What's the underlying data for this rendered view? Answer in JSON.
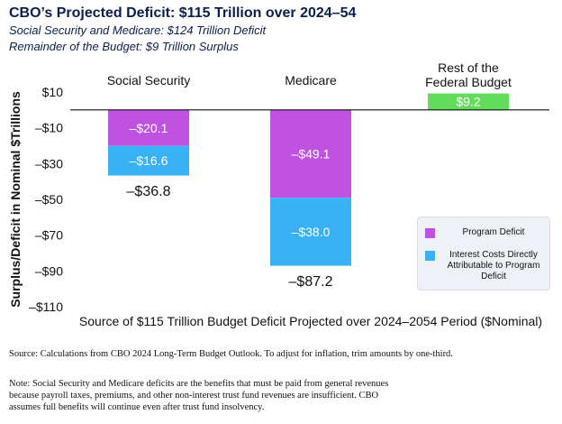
{
  "chart_data": {
    "type": "bar",
    "title": "CBO’s Projected Deficit: $115 Trillion over 2024–54",
    "subtitle_lines": [
      "Social Security and Medicare: $124 Trillion Deficit",
      "Remainder of the Budget: $9 Trillion Surplus"
    ],
    "xlabel": "Source of $115 Trillion Budget Deficit Projected over 2024–2054 Period ($Nominal)",
    "ylabel": "Surplus/Deficit in Nominal $Trillions",
    "ylim": [
      -110,
      10
    ],
    "yticks": [
      10,
      -10,
      -30,
      -50,
      -70,
      -90,
      -110
    ],
    "ytick_labels": [
      "$10",
      "–$10",
      "–$30",
      "–$50",
      "–$70",
      "–$90",
      "–$110"
    ],
    "categories": [
      {
        "name": "Social Security",
        "name_lines": [
          "Social Security"
        ]
      },
      {
        "name": "Medicare",
        "name_lines": [
          "Medicare"
        ]
      },
      {
        "name": "Rest of the Federal Budget",
        "name_lines": [
          "Rest of the",
          "Federal Budget"
        ]
      }
    ],
    "series": [
      {
        "name": "Program Deficit",
        "color": "#c052e2",
        "values": [
          -20.1,
          -49.1,
          null
        ],
        "labels": [
          "–$20.1",
          "–$49.1",
          ""
        ]
      },
      {
        "name": "Interest Costs Directly Attributable to Program Deficit",
        "color": "#38b2f4",
        "values": [
          -16.6,
          -38.0,
          null
        ],
        "labels": [
          "–$16.6",
          "–$38.0",
          ""
        ]
      },
      {
        "name": "Rest of the Federal Budget",
        "color": "#63dc5c",
        "values": [
          null,
          null,
          9.2
        ],
        "labels": [
          "",
          "",
          "$9.2"
        ]
      }
    ],
    "totals": [
      -36.8,
      -87.2,
      null
    ],
    "total_labels": [
      "–$36.8",
      "–$87.2",
      ""
    ],
    "legend": {
      "placement": "bottom-right",
      "entries": [
        {
          "label": "Program Deficit",
          "color": "#c052e2"
        },
        {
          "label": "Interest Costs Directly Attributable to Program Deficit",
          "color": "#38b2f4"
        }
      ]
    }
  },
  "source_text": "Source: Calculations from CBO 2024 Long-Term Budget Outlook. To adjust for inflation, trim amounts by one-third.",
  "note_text": "Note: Social Security and Medicare deficits are the benefits that must be paid from general revenues because payroll taxes, premiums, and other non-interest trust fund revenues are insufficient. CBO assumes full benefits will continue even after trust fund insolvency."
}
